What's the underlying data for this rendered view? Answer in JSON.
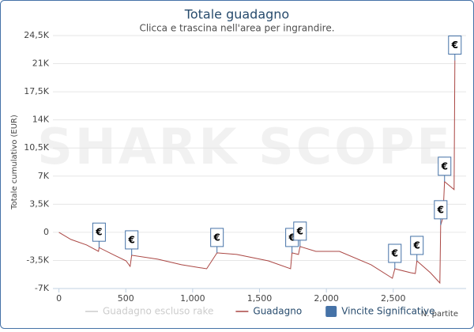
{
  "chart_data": {
    "type": "line",
    "title": "Totale guadagno",
    "subtitle": "Clicca e trascina nell'area per ingrandire.",
    "watermark": "SHARK SCOPE",
    "y_label": "Totale cumulativo (EUR)",
    "x_label": "N. partite",
    "xlim": [
      -45,
      3045
    ],
    "ylim": [
      -7000,
      24500
    ],
    "xticks": [
      0,
      500,
      {
        "value": 1000,
        "label": "1,000"
      },
      {
        "value": 1500,
        "label": "1,500"
      },
      {
        "value": 2000,
        "label": "2,000"
      },
      {
        "value": 2500,
        "label": "2,500"
      }
    ],
    "yticks": [
      {
        "value": -7000,
        "label": "-7K"
      },
      {
        "value": -3500,
        "label": "-3,5K"
      },
      0,
      {
        "value": 3500,
        "label": "3,5K"
      },
      {
        "value": 7000,
        "label": "7K"
      },
      {
        "value": 10500,
        "label": "10,5K"
      },
      {
        "value": 14000,
        "label": "14K"
      },
      {
        "value": 17500,
        "label": "17,5K"
      },
      {
        "value": 21000,
        "label": "21K"
      },
      {
        "value": 24500,
        "label": "24,5K"
      }
    ],
    "grid": true,
    "series": [
      {
        "name": "Guadagno escluso rake",
        "color": "#cccccc",
        "hidden": true
      },
      {
        "name": "Guadagno",
        "color": "#aa4643",
        "x": [
          0,
          89,
          207,
          296,
          300,
          420,
          502,
          532,
          544,
          739,
          916,
          1105,
          1182,
          1330,
          1566,
          1732,
          1743,
          1791,
          1803,
          1921,
          2098,
          2334,
          2494,
          2512,
          2630,
          2665,
          2677,
          2778,
          2849,
          2855,
          2872,
          2884,
          2955,
          2961
        ],
        "values": [
          0,
          -890,
          -1580,
          -2370,
          -1900,
          -2900,
          -3550,
          -4240,
          -2860,
          -3350,
          -4040,
          -4540,
          -2560,
          -2760,
          -3550,
          -4540,
          -2560,
          -2760,
          -1770,
          -2370,
          -2370,
          -4040,
          -5720,
          -4540,
          -5030,
          -5130,
          -3550,
          -5030,
          -6310,
          890,
          1870,
          6310,
          5320,
          21400
        ]
      },
      {
        "name": "Vincite Significative",
        "color": "#4572a7",
        "marker_label": "€",
        "x": [
          300,
          544,
          1182,
          1743,
          1803,
          2512,
          2677,
          2855,
          2884,
          2961
        ],
        "values": [
          -1900,
          -2860,
          -2560,
          -2560,
          -1770,
          -4540,
          -3550,
          890,
          6310,
          21400
        ]
      }
    ]
  }
}
